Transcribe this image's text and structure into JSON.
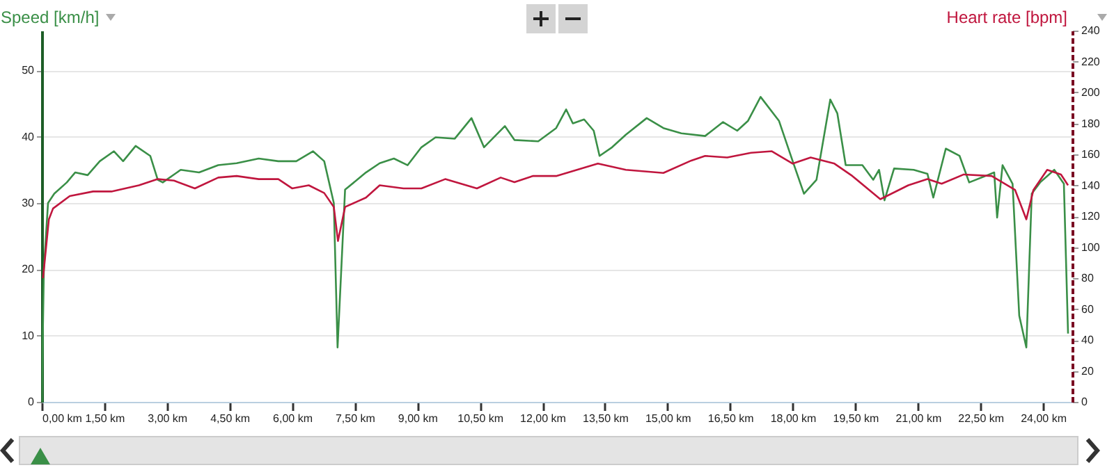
{
  "chart_data": {
    "type": "line",
    "ylabel": "Speed [km/h]",
    "y2label": "Heart rate [bpm]",
    "xlim": [
      0,
      24.7
    ],
    "xticks": [
      {
        "value": 0,
        "label": "0,00 km"
      },
      {
        "value": 1.5,
        "label": "1,50 km"
      },
      {
        "value": 3,
        "label": "3,00 km"
      },
      {
        "value": 4.5,
        "label": "4,50 km"
      },
      {
        "value": 6,
        "label": "6,00 km"
      },
      {
        "value": 7.5,
        "label": "7,50 km"
      },
      {
        "value": 9,
        "label": "9,00 km"
      },
      {
        "value": 10.5,
        "label": "10,50 km"
      },
      {
        "value": 12,
        "label": "12,00 km"
      },
      {
        "value": 13.5,
        "label": "13,50 km"
      },
      {
        "value": 15,
        "label": "15,00 km"
      },
      {
        "value": 16.5,
        "label": "16,50 km"
      },
      {
        "value": 18,
        "label": "18,00 km"
      },
      {
        "value": 19.5,
        "label": "19,50 km"
      },
      {
        "value": 21,
        "label": "21,00 km"
      },
      {
        "value": 22.5,
        "label": "22,50 km"
      },
      {
        "value": 24,
        "label": "24,00 km"
      }
    ],
    "ylim": [
      0,
      56
    ],
    "yticks": [
      0,
      10,
      20,
      30,
      40,
      50
    ],
    "y2lim": [
      0,
      240
    ],
    "y2ticks": [
      0,
      20,
      40,
      60,
      80,
      100,
      120,
      140,
      160,
      180,
      200,
      220,
      240
    ],
    "grid": "y",
    "series": [
      {
        "color": "#3a8f47",
        "x": [
          0,
          0.05,
          0.15,
          0.3,
          0.6,
          0.8,
          1.1,
          1.39,
          1.73,
          1.95,
          2.25,
          2.6,
          2.78,
          2.9,
          3.33,
          3.77,
          4.23,
          4.67,
          5.2,
          5.67,
          6.1,
          6.5,
          6.77,
          7.0,
          7.09,
          7.27,
          7.77,
          8.1,
          8.44,
          8.77,
          9.1,
          9.44,
          9.9,
          10.3,
          10.6,
          11.1,
          11.33,
          11.9,
          12.33,
          12.57,
          12.73,
          13.0,
          13.23,
          13.37,
          13.67,
          14.0,
          14.5,
          14.9,
          15.33,
          15.9,
          16.33,
          16.67,
          16.93,
          17.23,
          17.67,
          18.0,
          18.27,
          18.57,
          18.9,
          19.07,
          19.27,
          19.67,
          19.93,
          20.07,
          20.2,
          20.43,
          20.9,
          21.23,
          21.37,
          21.67,
          22.0,
          22.23,
          22.67,
          22.83,
          22.9,
          23.03,
          23.27,
          23.43,
          23.6,
          23.73,
          23.93,
          24.27,
          24.5,
          24.6
        ],
        "values": [
          0,
          20,
          30,
          31.4,
          33.1,
          34.6,
          34.2,
          36.3,
          37.8,
          36.3,
          38.6,
          37.1,
          33.5,
          33.1,
          35,
          34.6,
          35.7,
          36,
          36.7,
          36.3,
          36.3,
          37.8,
          36.3,
          30,
          8.2,
          32,
          34.6,
          36,
          36.7,
          35.7,
          38.4,
          39.9,
          39.7,
          42.8,
          38.4,
          41.6,
          39.5,
          39.3,
          41.3,
          44.1,
          42,
          42.6,
          40.9,
          37.1,
          38.4,
          40.3,
          42.8,
          41.3,
          40.5,
          40.1,
          42.2,
          40.9,
          42.4,
          46,
          42.4,
          36.3,
          31.4,
          33.5,
          45.6,
          43.5,
          35.7,
          35.7,
          33.5,
          35,
          30.4,
          35.2,
          35,
          34.4,
          30.8,
          38.2,
          37.1,
          33.1,
          34.2,
          34.6,
          27.8,
          35.7,
          32.9,
          13,
          8.2,
          31.4,
          33.1,
          35,
          32.9,
          10.3
        ]
      },
      {
        "color": "#c0163e",
        "axis": "y2",
        "x": [
          0.03,
          0.17,
          0.27,
          0.67,
          1.23,
          1.67,
          2.0,
          2.33,
          2.78,
          3.17,
          3.67,
          4.23,
          4.67,
          5.2,
          5.67,
          6.0,
          6.4,
          6.77,
          7.0,
          7.1,
          7.27,
          7.77,
          8.1,
          8.67,
          9.1,
          9.67,
          10.43,
          11.0,
          11.33,
          11.77,
          12.33,
          13.33,
          14.0,
          14.9,
          15.57,
          15.9,
          16.43,
          17.0,
          17.5,
          18.0,
          18.43,
          19.0,
          19.43,
          20.1,
          20.77,
          21.23,
          21.57,
          22.1,
          22.77,
          23.33,
          23.6,
          23.77,
          24.1,
          24.43,
          24.6
        ],
        "values": [
          80,
          118,
          125,
          133,
          136,
          136,
          138,
          140,
          144,
          143,
          138,
          145,
          146,
          144,
          144,
          138,
          140,
          135,
          126,
          104,
          126,
          132,
          140,
          138,
          138,
          144,
          138,
          145,
          142,
          146,
          146,
          154,
          150,
          148,
          156,
          159,
          158,
          161,
          162,
          154,
          158,
          154,
          146,
          131,
          140,
          144,
          141,
          147,
          146,
          137,
          118,
          137,
          150,
          147,
          140
        ]
      }
    ]
  }
}
